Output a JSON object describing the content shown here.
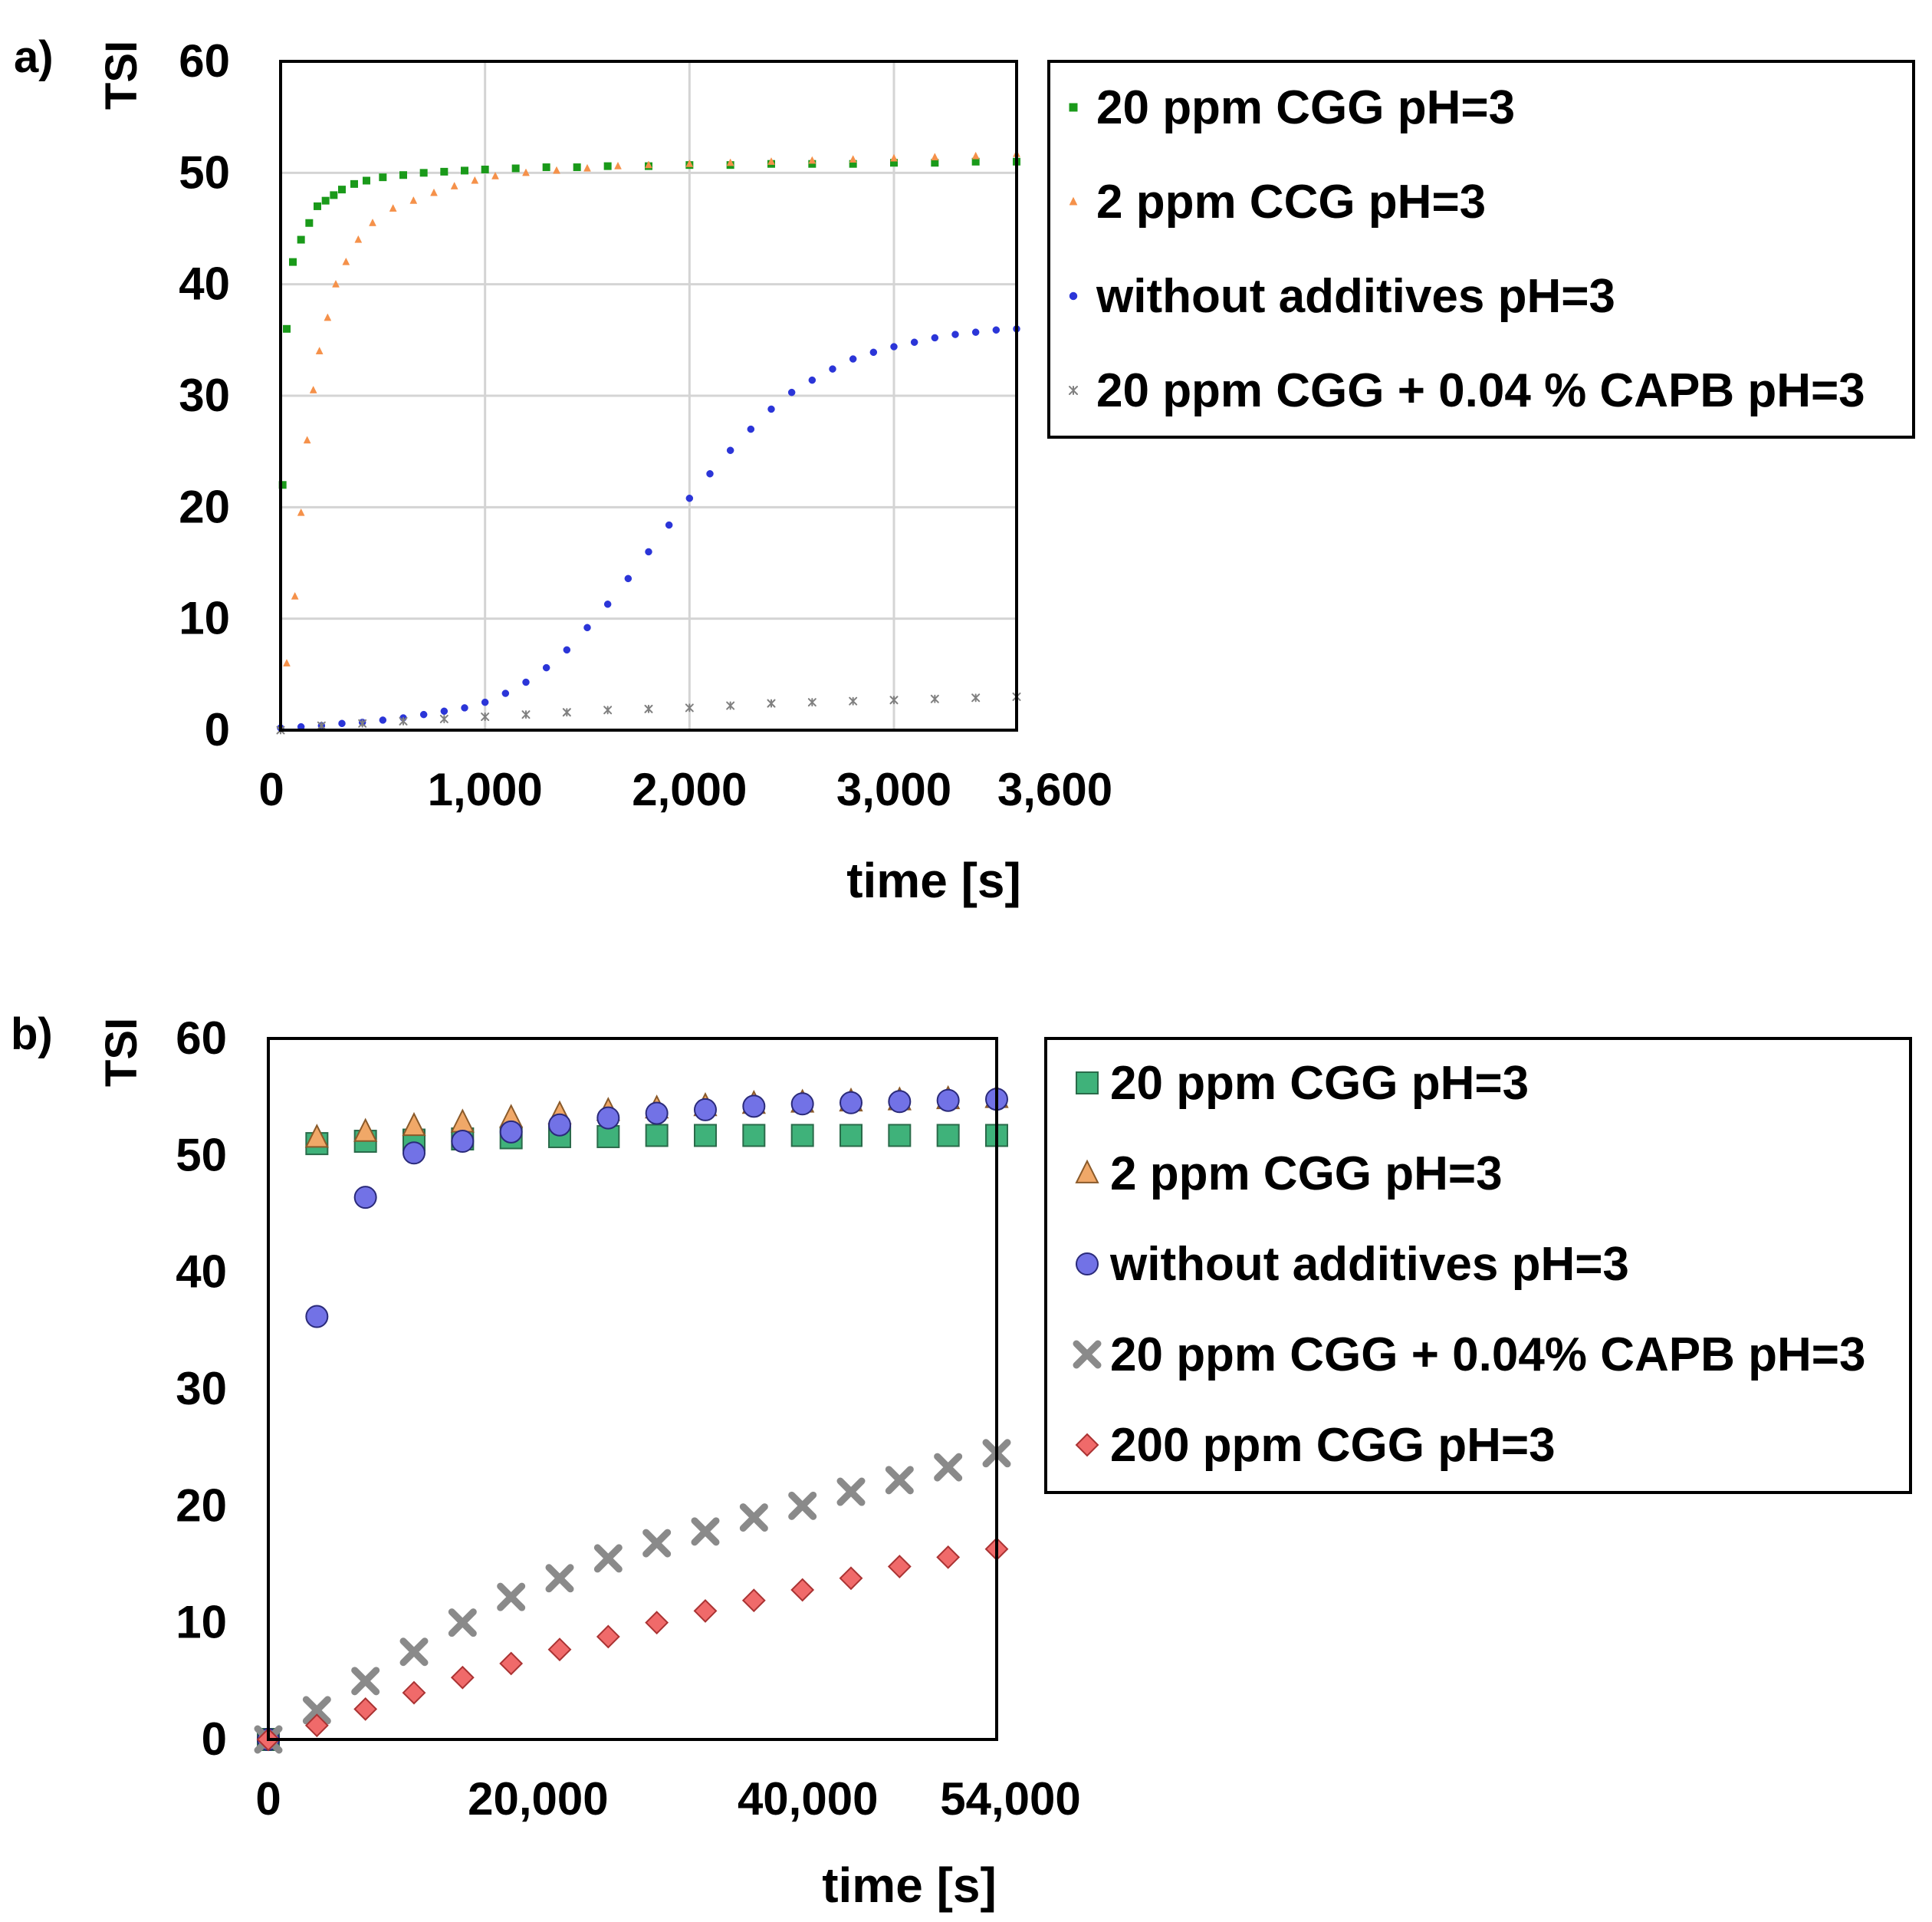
{
  "chart_data": [
    {
      "panel_label": "a)",
      "type": "scatter",
      "title": "",
      "xlabel": "time [s]",
      "ylabel": "TSI",
      "xlim": [
        0,
        3600
      ],
      "ylim": [
        0,
        60
      ],
      "grid": true,
      "legend_position": "right",
      "xticks": [
        0,
        1000,
        2000,
        3000,
        3600
      ],
      "xtick_labels": [
        "0",
        "1,000",
        "2,000",
        "3,000",
        "3,600"
      ],
      "yticks": [
        0,
        10,
        20,
        30,
        40,
        50,
        60
      ],
      "ytick_labels": [
        "0",
        "10",
        "20",
        "30",
        "40",
        "50",
        "60"
      ],
      "series": [
        {
          "name": "20 ppm CGG pH=3",
          "marker": "square-small",
          "color": "#1a9a1a",
          "x": [
            10,
            30,
            60,
            100,
            140,
            180,
            220,
            260,
            300,
            360,
            420,
            500,
            600,
            700,
            800,
            900,
            1000,
            1150,
            1300,
            1450,
            1600,
            1800,
            2000,
            2200,
            2400,
            2600,
            2800,
            3000,
            3200,
            3400,
            3600
          ],
          "y": [
            22,
            36,
            42,
            44,
            45.5,
            47,
            47.5,
            48,
            48.5,
            49,
            49.3,
            49.6,
            49.8,
            50,
            50.1,
            50.2,
            50.3,
            50.4,
            50.5,
            50.5,
            50.6,
            50.6,
            50.7,
            50.7,
            50.8,
            50.8,
            50.8,
            50.9,
            50.9,
            51,
            51
          ]
        },
        {
          "name": "2 ppm CCG pH=3",
          "marker": "triangle-small",
          "color": "#f5914a",
          "x": [
            30,
            70,
            100,
            130,
            160,
            190,
            230,
            270,
            320,
            380,
            450,
            550,
            650,
            750,
            850,
            950,
            1050,
            1200,
            1350,
            1500,
            1650,
            1800,
            2000,
            2200,
            2400,
            2600,
            2800,
            3000,
            3200,
            3400,
            3600
          ],
          "y": [
            6,
            12,
            19.5,
            26,
            30.5,
            34,
            37,
            40,
            42,
            44,
            45.5,
            46.8,
            47.5,
            48.2,
            48.8,
            49.3,
            49.7,
            50,
            50.2,
            50.4,
            50.6,
            50.7,
            50.8,
            50.9,
            51,
            51.1,
            51.2,
            51.3,
            51.4,
            51.5,
            51.7
          ]
        },
        {
          "name": "without additives pH=3",
          "marker": "circle-small",
          "color": "#2b35d8",
          "x": [
            0,
            100,
            200,
            300,
            400,
            500,
            600,
            700,
            800,
            900,
            1000,
            1100,
            1200,
            1300,
            1400,
            1500,
            1600,
            1700,
            1800,
            1900,
            2000,
            2100,
            2200,
            2300,
            2400,
            2500,
            2600,
            2700,
            2800,
            2900,
            3000,
            3100,
            3200,
            3300,
            3400,
            3500,
            3600
          ],
          "y": [
            0.2,
            0.3,
            0.4,
            0.6,
            0.7,
            0.9,
            1.1,
            1.4,
            1.7,
            2.0,
            2.5,
            3.3,
            4.3,
            5.6,
            7.2,
            9.2,
            11.3,
            13.6,
            16.0,
            18.4,
            20.8,
            23.0,
            25.1,
            27.0,
            28.8,
            30.3,
            31.4,
            32.4,
            33.3,
            33.9,
            34.4,
            34.8,
            35.2,
            35.5,
            35.7,
            35.9,
            36.0
          ]
        },
        {
          "name": "20 ppm CGG + 0.04 % CAPB pH=3",
          "marker": "asterisk-small",
          "color": "#808080",
          "x": [
            0,
            200,
            400,
            600,
            800,
            1000,
            1200,
            1400,
            1600,
            1800,
            2000,
            2200,
            2400,
            2600,
            2800,
            3000,
            3200,
            3400,
            3600
          ],
          "y": [
            0,
            0.4,
            0.6,
            0.8,
            1.0,
            1.2,
            1.4,
            1.6,
            1.8,
            1.9,
            2.0,
            2.2,
            2.4,
            2.5,
            2.6,
            2.7,
            2.8,
            2.9,
            3.0
          ]
        }
      ]
    },
    {
      "panel_label": "b)",
      "type": "scatter",
      "title": "",
      "xlabel": "time [s]",
      "ylabel": "TSI",
      "xlim": [
        0,
        54000
      ],
      "ylim": [
        0,
        60
      ],
      "grid": false,
      "legend_position": "right",
      "xticks": [
        0,
        20000,
        40000,
        54000
      ],
      "xtick_labels": [
        "0",
        "20,000",
        "40,000",
        "54,000"
      ],
      "yticks": [
        0,
        10,
        20,
        30,
        40,
        50,
        60
      ],
      "ytick_labels": [
        "0",
        "10",
        "20",
        "30",
        "40",
        "50",
        "60"
      ],
      "series": [
        {
          "name": "20 ppm CGG pH=3",
          "marker": "square",
          "color": "#3fb27a",
          "x": [
            0,
            3600,
            7200,
            10800,
            14400,
            18000,
            21600,
            25200,
            28800,
            32400,
            36000,
            39600,
            43200,
            46800,
            50400,
            54000
          ],
          "y": [
            0,
            51,
            51.2,
            51.3,
            51.4,
            51.5,
            51.6,
            51.6,
            51.7,
            51.7,
            51.7,
            51.7,
            51.7,
            51.7,
            51.7,
            51.7
          ]
        },
        {
          "name": "2 ppm CGG pH=3",
          "marker": "triangle",
          "color": "#f0a868",
          "x": [
            0,
            3600,
            7200,
            10800,
            14400,
            18000,
            21600,
            25200,
            28800,
            32400,
            36000,
            39600,
            43200,
            46800,
            50400,
            54000
          ],
          "y": [
            0,
            51.5,
            52,
            52.5,
            52.8,
            53.2,
            53.5,
            53.8,
            54,
            54.2,
            54.4,
            54.5,
            54.6,
            54.7,
            54.8,
            54.9
          ]
        },
        {
          "name": "without additives pH=3",
          "marker": "circle",
          "color": "#7272e6",
          "x": [
            0,
            3600,
            7200,
            10800,
            14400,
            18000,
            21600,
            25200,
            28800,
            32400,
            36000,
            39600,
            43200,
            46800,
            50400,
            54000
          ],
          "y": [
            0,
            36.2,
            46.4,
            50.2,
            51.2,
            52,
            52.6,
            53.2,
            53.6,
            53.9,
            54.2,
            54.4,
            54.5,
            54.6,
            54.7,
            54.8
          ]
        },
        {
          "name": "20 ppm CGG + 0.04% CAPB pH=3",
          "marker": "x",
          "color": "#8a8a8a",
          "x": [
            0,
            3600,
            7200,
            10800,
            14400,
            18000,
            21600,
            25200,
            28800,
            32400,
            36000,
            39600,
            43200,
            46800,
            50400,
            54000
          ],
          "y": [
            0,
            2.5,
            5,
            7.5,
            10,
            12.2,
            13.8,
            15.5,
            16.8,
            17.8,
            19,
            20,
            21.2,
            22.2,
            23.3,
            24.5
          ]
        },
        {
          "name": "200 ppm CGG  pH=3",
          "marker": "diamond",
          "color": "#f06a6a",
          "x": [
            0,
            3600,
            7200,
            10800,
            14400,
            18000,
            21600,
            25200,
            28800,
            32400,
            36000,
            39600,
            43200,
            46800,
            50400,
            54000
          ],
          "y": [
            0,
            1.2,
            2.6,
            4,
            5.3,
            6.5,
            7.7,
            8.8,
            10,
            11,
            11.9,
            12.8,
            13.8,
            14.8,
            15.6,
            16.3
          ]
        }
      ]
    }
  ]
}
